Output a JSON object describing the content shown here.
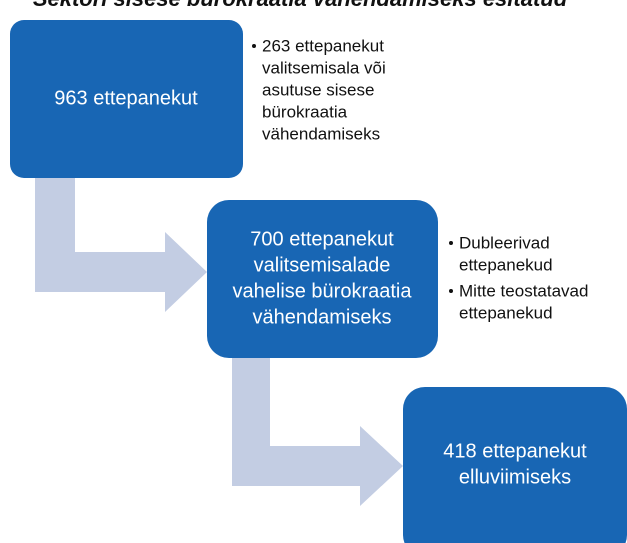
{
  "title": "Sektori sisese bürokraatia vähendamiseks esitatud",
  "nodes": [
    {
      "lines": [
        "963 ettepanekut"
      ]
    },
    {
      "lines": [
        "700 ettepanekut",
        "valitsemisalade",
        "vahelise bürokraatia",
        "vähendamiseks"
      ]
    },
    {
      "lines": [
        "418 ettepanekut",
        "elluviimiseks"
      ]
    }
  ],
  "notes": [
    {
      "items": [
        {
          "lines": [
            "263 ettepanekut",
            "valitsemisala või",
            "asutuse sisese",
            "bürokraatia",
            "vähendamiseks"
          ]
        }
      ]
    },
    {
      "items": [
        {
          "lines": [
            "Dubleerivad",
            "ettepanekud"
          ]
        },
        {
          "lines": [
            "Mitte teostatavad",
            "ettepanekud"
          ]
        }
      ]
    }
  ]
}
